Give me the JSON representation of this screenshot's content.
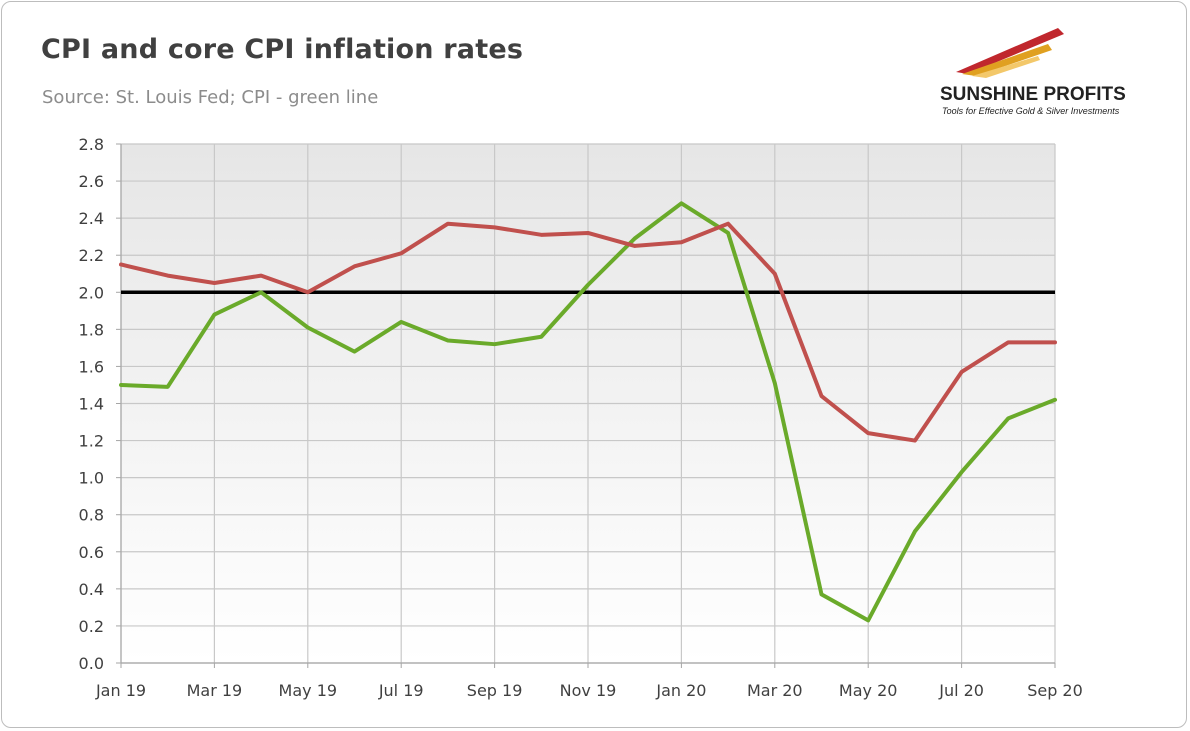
{
  "header": {
    "title": "CPI and core CPI inflation rates",
    "subtitle": "Source: St. Louis Fed; CPI - green line"
  },
  "logo": {
    "name": "SUNSHINE PROFITS",
    "tagline": "Tools for Effective Gold & Silver Investments",
    "colors": {
      "red": "#c0272d",
      "gold": "#e0a020",
      "text": "#222222"
    }
  },
  "chart_data": {
    "type": "line",
    "x": [
      "Jan 19",
      "Feb 19",
      "Mar 19",
      "Apr 19",
      "May 19",
      "Jun 19",
      "Jul 19",
      "Aug 19",
      "Sep 19",
      "Oct 19",
      "Nov 19",
      "Dec 19",
      "Jan 20",
      "Feb 20",
      "Mar 20",
      "Apr 20",
      "May 20",
      "Jun 20",
      "Jul 20",
      "Aug 20",
      "Sep 20"
    ],
    "x_tick_labels": [
      "Jan 19",
      "Mar 19",
      "May 19",
      "Jul 19",
      "Sep 19",
      "Nov 19",
      "Jan 20",
      "Mar 20",
      "May 20",
      "Jul 20",
      "Sep 20"
    ],
    "series": [
      {
        "color": "#6aaa2a",
        "values": [
          1.5,
          1.49,
          1.88,
          2.0,
          1.81,
          1.68,
          1.84,
          1.74,
          1.72,
          1.76,
          2.04,
          2.29,
          2.48,
          2.32,
          1.51,
          0.37,
          0.23,
          0.71,
          1.03,
          1.32,
          1.42
        ]
      },
      {
        "color": "#c0504d",
        "values": [
          2.15,
          2.09,
          2.05,
          2.09,
          2.0,
          2.14,
          2.21,
          2.37,
          2.35,
          2.31,
          2.32,
          2.25,
          2.27,
          2.37,
          2.1,
          1.44,
          1.24,
          1.2,
          1.57,
          1.73,
          1.73
        ]
      }
    ],
    "reference_line": {
      "value": 2.0,
      "color": "#000000"
    },
    "ylim": [
      0.0,
      2.8
    ],
    "y_ticks": [
      "0.0",
      "0.2",
      "0.4",
      "0.6",
      "0.8",
      "1.0",
      "1.2",
      "1.4",
      "1.6",
      "1.8",
      "2.0",
      "2.2",
      "2.4",
      "2.6",
      "2.8"
    ],
    "grid": true,
    "plot_background": "gradient grey-to-white"
  }
}
